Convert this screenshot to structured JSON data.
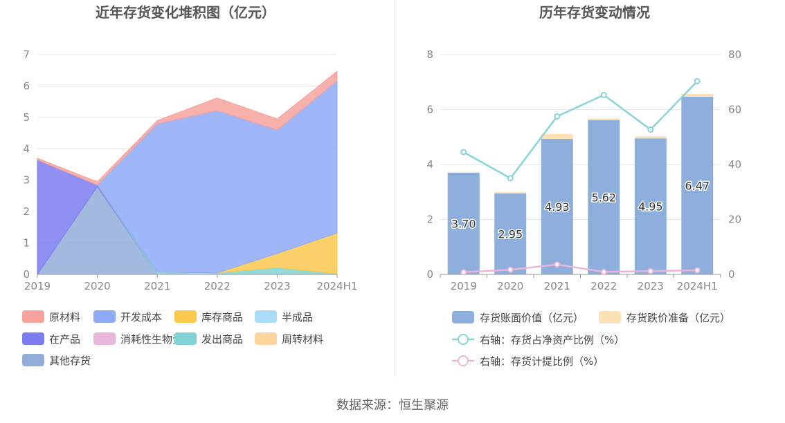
{
  "source": "数据来源：恒生聚源",
  "chart_data": [
    {
      "type": "area",
      "stacked": true,
      "title": "近年存货变化堆积图（亿元）",
      "categories": [
        "2019",
        "2020",
        "2021",
        "2022",
        "2023",
        "2024H1"
      ],
      "ylim": [
        0,
        7
      ],
      "yticks": [
        "0",
        "1",
        "2",
        "3",
        "4",
        "5",
        "6",
        "7"
      ],
      "grid": true,
      "legend_position": "bottom",
      "series": [
        {
          "name": "原材料",
          "color": "#f7a29b",
          "values": [
            0.05,
            0.1,
            0.1,
            0.4,
            0.35,
            0.3
          ]
        },
        {
          "name": "开发成本",
          "color": "#8eaaf7",
          "values": [
            0,
            0,
            4.73,
            5.17,
            3.93,
            4.85
          ]
        },
        {
          "name": "库存商品",
          "color": "#fcc84d",
          "values": [
            0,
            0,
            0,
            0,
            0.45,
            1.3
          ]
        },
        {
          "name": "半成品",
          "color": "#a9ddf7",
          "values": [
            0,
            0,
            0,
            0,
            0,
            0
          ]
        },
        {
          "name": "在产品",
          "color": "#7b7df0",
          "values": [
            3.65,
            0.05,
            0,
            0,
            0,
            0
          ]
        },
        {
          "name": "消耗性生物资产",
          "color": "#e8b6da",
          "values": [
            0,
            0,
            0,
            0,
            0,
            0
          ]
        },
        {
          "name": "发出商品",
          "color": "#80d3d4",
          "values": [
            0,
            0,
            0.07,
            0.05,
            0.22,
            0.02
          ]
        },
        {
          "name": "周转材料",
          "color": "#fdd59c",
          "values": [
            0,
            0,
            0,
            0,
            0,
            0
          ]
        },
        {
          "name": "其他存货",
          "color": "#92aed8",
          "values": [
            0,
            2.8,
            0,
            0,
            0,
            0
          ]
        }
      ]
    },
    {
      "type": "bar",
      "title": "历年存货变动情况",
      "categories": [
        "2019",
        "2020",
        "2021",
        "2022",
        "2023",
        "2024H1"
      ],
      "ylim": [
        0,
        8
      ],
      "yticks": [
        "0",
        "2",
        "4",
        "6",
        "8"
      ],
      "y2lim": [
        0,
        80
      ],
      "y2ticks": [
        "0",
        "20",
        "40",
        "60",
        "80"
      ],
      "grid": true,
      "legend_position": "bottom",
      "series": [
        {
          "name": "存货账面价值（亿元）",
          "type": "bar",
          "color": "#8eaedc",
          "values": [
            3.7,
            2.95,
            4.93,
            5.62,
            4.95,
            6.47
          ],
          "labels": [
            "3.70",
            "2.95",
            "4.93",
            "5.62",
            "4.95",
            "6.47"
          ]
        },
        {
          "name": "存货跌价准备（亿元）",
          "type": "bar",
          "color": "#fde2b8",
          "values": [
            0.03,
            0.05,
            0.18,
            0.05,
            0.08,
            0.1
          ]
        },
        {
          "name": "右轴：存货占净资产比例（%）",
          "type": "line",
          "axis": "right",
          "color": "#88d4d8",
          "values": [
            44.5,
            35,
            57.5,
            65.3,
            52.7,
            70.3
          ]
        },
        {
          "name": "右轴：存货计提比例（%）",
          "type": "line",
          "axis": "right",
          "color": "#eab6d8",
          "values": [
            0.8,
            1.7,
            3.6,
            0.9,
            1.2,
            1.5
          ]
        }
      ]
    }
  ]
}
